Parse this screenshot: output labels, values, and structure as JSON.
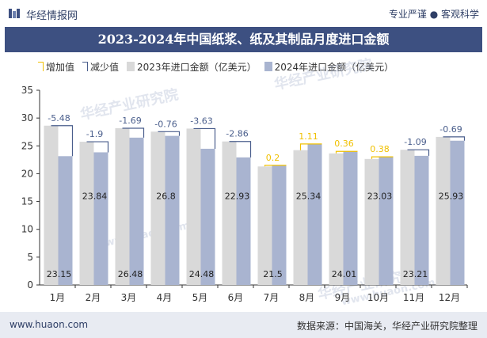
{
  "header": {
    "brand": "华经情报网",
    "slogan": "专业严谨 ● 客观科学"
  },
  "title": "2023-2024年中国纸浆、纸及其制品月度进口金额",
  "legend": {
    "increase": "增加值",
    "decrease": "减少值",
    "s2023": "2023年进口金额（亿美元）",
    "s2024": "2024年进口金额（亿美元）"
  },
  "watermark": {
    "text": "华经产业研究院",
    "url": "www.huaon.com"
  },
  "footer": {
    "website": "www.huaon.com",
    "source": "数据来源：中国海关，华经产业研究院整理"
  },
  "colors": {
    "bar2023": "#d9d9d9",
    "bar2024": "#a9b4d0",
    "increase": "#f0c000",
    "decrease": "#4a5e8c",
    "title_bg": "#3d5081"
  },
  "chart_data": {
    "type": "bar",
    "categories": [
      "1月",
      "2月",
      "3月",
      "4月",
      "5月",
      "6月",
      "7月",
      "8月",
      "9月",
      "10月",
      "11月",
      "12月"
    ],
    "ylim": [
      0,
      35
    ],
    "yticks": [
      0,
      5,
      10,
      15,
      20,
      25,
      30,
      35
    ],
    "grid": false,
    "series": [
      {
        "name": "2023年进口金额（亿美元）",
        "values": [
          28.63,
          25.74,
          28.17,
          27.56,
          28.11,
          25.79,
          21.3,
          24.23,
          23.65,
          22.65,
          24.3,
          26.62
        ]
      },
      {
        "name": "2024年进口金额（亿美元）",
        "values": [
          23.15,
          23.84,
          26.48,
          26.8,
          24.48,
          22.93,
          21.5,
          25.34,
          24.01,
          23.03,
          23.21,
          25.93
        ]
      }
    ],
    "change": {
      "values": [
        -5.48,
        -1.9,
        -1.69,
        -0.76,
        -3.63,
        -2.86,
        0.2,
        1.11,
        0.36,
        0.38,
        -1.09,
        -0.69
      ],
      "labels": [
        "-5.48",
        "-1.9",
        "-1.69",
        "-0.76",
        "-3.63",
        "-2.86",
        "0.2",
        "1.11",
        "0.36",
        "0.38",
        "-1.09",
        "-0.69"
      ]
    },
    "value_labels_2024": [
      "23.15",
      "23.84",
      "26.48",
      "26.8",
      "24.48",
      "22.93",
      "21.5",
      "25.34",
      "24.01",
      "23.03",
      "23.21",
      "25.93"
    ]
  }
}
